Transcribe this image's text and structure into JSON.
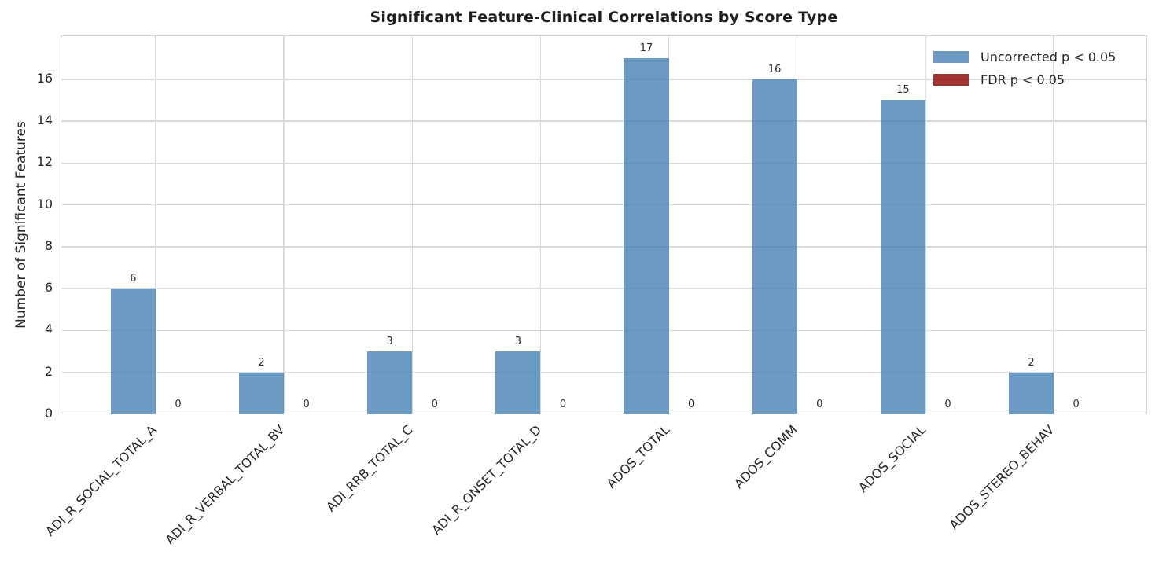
{
  "chart_data": {
    "type": "bar",
    "title": "Significant Feature-Clinical Correlations by Score Type",
    "xlabel": "",
    "ylabel": "Number of Significant Features",
    "categories": [
      "ADI_R_SOCIAL_TOTAL_A",
      "ADI_R_VERBAL_TOTAL_BV",
      "ADI_RRB_TOTAL_C",
      "ADI_R_ONSET_TOTAL_D",
      "ADOS_TOTAL",
      "ADOS_COMM",
      "ADOS_SOCIAL",
      "ADOS_STEREO_BEHAV"
    ],
    "series": [
      {
        "name": "Uncorrected p < 0.05",
        "color": "#4682b4",
        "opacity": 0.8,
        "values": [
          6,
          2,
          3,
          3,
          17,
          16,
          15,
          2
        ]
      },
      {
        "name": "FDR p < 0.05",
        "color": "#8b0000",
        "opacity": 0.8,
        "values": [
          0,
          0,
          0,
          0,
          0,
          0,
          0,
          0
        ]
      }
    ],
    "yticks": [
      0,
      2,
      4,
      6,
      8,
      10,
      12,
      14,
      16
    ],
    "ylim": [
      0,
      18.06
    ],
    "x_tick_rotation": 45,
    "grid": true,
    "legend_position": "upper right",
    "bar_value_labels": true
  },
  "colors": {
    "grid": "#d9d9d9",
    "axis_border": "#d6d6d6",
    "text": "#262626",
    "title": "#1f1f1f",
    "annotation": "#2b2b2b",
    "background": "#ffffff"
  }
}
